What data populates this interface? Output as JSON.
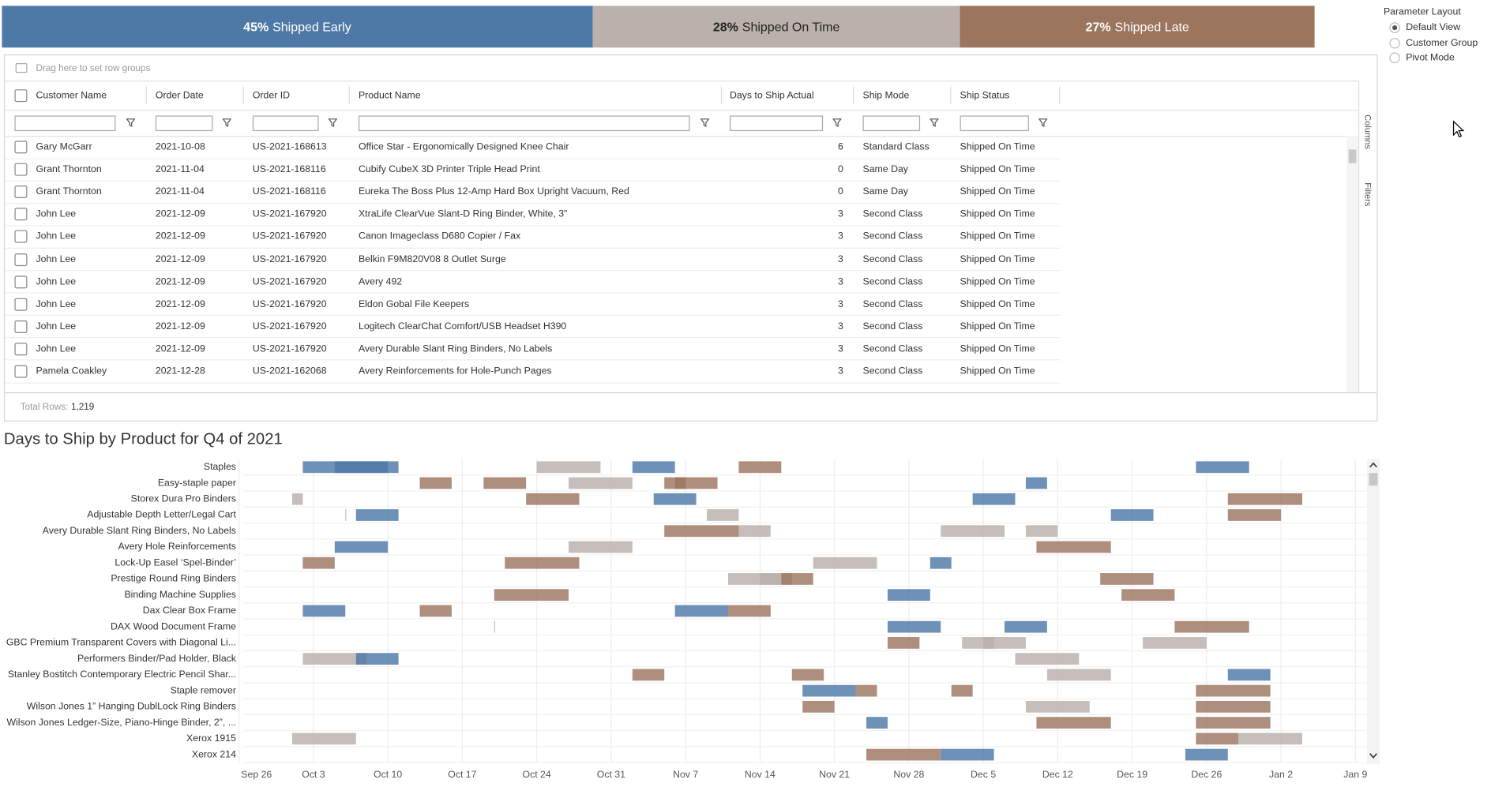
{
  "summary": {
    "segments": [
      {
        "value": 45,
        "label": "45%",
        "text": "Shipped Early",
        "color": "#4e79a7"
      },
      {
        "value": 28,
        "label": "28%",
        "text": "Shipped On Time",
        "color": "#bab0ac"
      },
      {
        "value": 27,
        "label": "27%",
        "text": "Shipped Late",
        "color": "#9c755f"
      }
    ]
  },
  "parameter": {
    "title": "Parameter Layout",
    "options": [
      "Default View",
      "Customer Group",
      "Pivot Mode"
    ],
    "selected": 0
  },
  "table": {
    "group_hint": "Drag here to set row groups",
    "columns": [
      "Customer Name",
      "Order Date",
      "Order ID",
      "Product Name",
      "Days to Ship Actual",
      "Ship Mode",
      "Ship Status"
    ],
    "rows": [
      [
        "Gary McGarr",
        "2021-10-08",
        "US-2021-168613",
        "Office Star - Ergonomically Designed Knee Chair",
        "6",
        "Standard Class",
        "Shipped On Time"
      ],
      [
        "Grant Thornton",
        "2021-11-04",
        "US-2021-168116",
        "Cubify CubeX 3D Printer Triple Head Print",
        "0",
        "Same Day",
        "Shipped On Time"
      ],
      [
        "Grant Thornton",
        "2021-11-04",
        "US-2021-168116",
        "Eureka The Boss Plus 12-Amp Hard Box Upright Vacuum, Red",
        "0",
        "Same Day",
        "Shipped On Time"
      ],
      [
        "John Lee",
        "2021-12-09",
        "US-2021-167920",
        "XtraLife ClearVue Slant-D Ring Binder, White, 3\"",
        "3",
        "Second Class",
        "Shipped On Time"
      ],
      [
        "John Lee",
        "2021-12-09",
        "US-2021-167920",
        "Canon Imageclass D680 Copier / Fax",
        "3",
        "Second Class",
        "Shipped On Time"
      ],
      [
        "John Lee",
        "2021-12-09",
        "US-2021-167920",
        "Belkin F9M820V08 8 Outlet Surge",
        "3",
        "Second Class",
        "Shipped On Time"
      ],
      [
        "John Lee",
        "2021-12-09",
        "US-2021-167920",
        "Avery 492",
        "3",
        "Second Class",
        "Shipped On Time"
      ],
      [
        "John Lee",
        "2021-12-09",
        "US-2021-167920",
        "Eldon Gobal File Keepers",
        "3",
        "Second Class",
        "Shipped On Time"
      ],
      [
        "John Lee",
        "2021-12-09",
        "US-2021-167920",
        "Logitech ClearChat Comfort/USB Headset H390",
        "3",
        "Second Class",
        "Shipped On Time"
      ],
      [
        "John Lee",
        "2021-12-09",
        "US-2021-167920",
        "Avery Durable Slant Ring Binders, No Labels",
        "3",
        "Second Class",
        "Shipped On Time"
      ],
      [
        "Pamela Coakley",
        "2021-12-28",
        "US-2021-162068",
        "Avery Reinforcements for Hole-Punch Pages",
        "3",
        "Second Class",
        "Shipped On Time"
      ]
    ],
    "total_label": "Total Rows:",
    "total": "1,219",
    "side_tabs": [
      "Columns",
      "Filters"
    ]
  },
  "chart_data": {
    "type": "gantt",
    "title": "Days to Ship by Product for Q4 of 2021",
    "xlim": [
      "2021-09-26",
      "2022-01-10"
    ],
    "xticks": [
      {
        "value": "2021-09-26",
        "label": "Sep 26"
      },
      {
        "value": "2021-10-03",
        "label": "Oct 3"
      },
      {
        "value": "2021-10-10",
        "label": "Oct 10"
      },
      {
        "value": "2021-10-17",
        "label": "Oct 17"
      },
      {
        "value": "2021-10-24",
        "label": "Oct 24"
      },
      {
        "value": "2021-10-31",
        "label": "Oct 31"
      },
      {
        "value": "2021-11-07",
        "label": "Nov 7"
      },
      {
        "value": "2021-11-14",
        "label": "Nov 14"
      },
      {
        "value": "2021-11-21",
        "label": "Nov 21"
      },
      {
        "value": "2021-11-28",
        "label": "Nov 28"
      },
      {
        "value": "2021-12-05",
        "label": "Dec 5"
      },
      {
        "value": "2021-12-12",
        "label": "Dec 12"
      },
      {
        "value": "2021-12-19",
        "label": "Dec 19"
      },
      {
        "value": "2021-12-26",
        "label": "Dec 26"
      },
      {
        "value": "2022-01-02",
        "label": "Jan 2"
      },
      {
        "value": "2022-01-09",
        "label": "Jan 9"
      }
    ],
    "grid": true,
    "rows": [
      {
        "product": "Staples",
        "tasks": [
          {
            "start": "2021-10-02",
            "end": "2021-10-10",
            "status": "Shipped Early"
          },
          {
            "start": "2021-10-05",
            "end": "2021-10-11",
            "status": "Shipped Early"
          },
          {
            "start": "2021-10-24",
            "end": "2021-10-30",
            "status": "Shipped On Time"
          },
          {
            "start": "2021-11-02",
            "end": "2021-11-06",
            "status": "Shipped Early"
          },
          {
            "start": "2021-11-12",
            "end": "2021-11-16",
            "status": "Shipped Late"
          },
          {
            "start": "2021-12-25",
            "end": "2021-12-30",
            "status": "Shipped Early"
          }
        ]
      },
      {
        "product": "Easy-staple paper",
        "tasks": [
          {
            "start": "2021-10-13",
            "end": "2021-10-16",
            "status": "Shipped Late"
          },
          {
            "start": "2021-10-19",
            "end": "2021-10-23",
            "status": "Shipped Late"
          },
          {
            "start": "2021-10-27",
            "end": "2021-11-02",
            "status": "Shipped On Time"
          },
          {
            "start": "2021-11-05",
            "end": "2021-11-10",
            "status": "Shipped Late"
          },
          {
            "start": "2021-11-06",
            "end": "2021-11-07",
            "status": "Shipped Late"
          },
          {
            "start": "2021-12-09",
            "end": "2021-12-11",
            "status": "Shipped Early"
          }
        ]
      },
      {
        "product": "Storex Dura Pro Binders",
        "tasks": [
          {
            "start": "2021-10-01",
            "end": "2021-10-02",
            "status": "Shipped On Time"
          },
          {
            "start": "2021-10-23",
            "end": "2021-10-28",
            "status": "Shipped Late"
          },
          {
            "start": "2021-11-04",
            "end": "2021-11-08",
            "status": "Shipped Early"
          },
          {
            "start": "2021-12-04",
            "end": "2021-12-08",
            "status": "Shipped Early"
          },
          {
            "start": "2021-12-28",
            "end": "2022-01-04",
            "status": "Shipped Late"
          }
        ]
      },
      {
        "product": "Adjustable Depth Letter/Legal Cart",
        "tasks": [
          {
            "start": "2021-10-06",
            "end": "2021-10-06",
            "status": "Shipped On Time"
          },
          {
            "start": "2021-10-07",
            "end": "2021-10-11",
            "status": "Shipped Early"
          },
          {
            "start": "2021-11-09",
            "end": "2021-11-12",
            "status": "Shipped On Time"
          },
          {
            "start": "2021-12-17",
            "end": "2021-12-21",
            "status": "Shipped Early"
          },
          {
            "start": "2021-12-28",
            "end": "2022-01-02",
            "status": "Shipped Late"
          }
        ]
      },
      {
        "product": "Avery Durable Slant Ring Binders, No Labels",
        "tasks": [
          {
            "start": "2021-11-05",
            "end": "2021-11-12",
            "status": "Shipped Late"
          },
          {
            "start": "2021-11-12",
            "end": "2021-11-15",
            "status": "Shipped On Time"
          },
          {
            "start": "2021-12-01",
            "end": "2021-12-07",
            "status": "Shipped On Time"
          },
          {
            "start": "2021-12-09",
            "end": "2021-12-12",
            "status": "Shipped On Time"
          }
        ]
      },
      {
        "product": "Avery Hole Reinforcements",
        "tasks": [
          {
            "start": "2021-10-05",
            "end": "2021-10-10",
            "status": "Shipped Early"
          },
          {
            "start": "2021-10-27",
            "end": "2021-11-02",
            "status": "Shipped On Time"
          },
          {
            "start": "2021-12-10",
            "end": "2021-12-17",
            "status": "Shipped Late"
          }
        ]
      },
      {
        "product": "Lock-Up Easel ‘Spel-Binder’",
        "tasks": [
          {
            "start": "2021-10-02",
            "end": "2021-10-05",
            "status": "Shipped Late"
          },
          {
            "start": "2021-10-21",
            "end": "2021-10-28",
            "status": "Shipped Late"
          },
          {
            "start": "2021-11-19",
            "end": "2021-11-25",
            "status": "Shipped On Time"
          },
          {
            "start": "2021-11-30",
            "end": "2021-12-02",
            "status": "Shipped Early"
          }
        ]
      },
      {
        "product": "Prestige Round Ring Binders",
        "tasks": [
          {
            "start": "2021-11-11",
            "end": "2021-11-16",
            "status": "Shipped On Time"
          },
          {
            "start": "2021-11-14",
            "end": "2021-11-17",
            "status": "Shipped On Time"
          },
          {
            "start": "2021-11-16",
            "end": "2021-11-19",
            "status": "Shipped Late"
          },
          {
            "start": "2021-12-16",
            "end": "2021-12-21",
            "status": "Shipped Late"
          }
        ]
      },
      {
        "product": "Binding Machine Supplies",
        "tasks": [
          {
            "start": "2021-10-20",
            "end": "2021-10-27",
            "status": "Shipped Late"
          },
          {
            "start": "2021-11-26",
            "end": "2021-11-30",
            "status": "Shipped Early"
          },
          {
            "start": "2021-12-18",
            "end": "2021-12-23",
            "status": "Shipped Late"
          }
        ]
      },
      {
        "product": "Dax Clear Box Frame",
        "tasks": [
          {
            "start": "2021-10-02",
            "end": "2021-10-06",
            "status": "Shipped Early"
          },
          {
            "start": "2021-10-13",
            "end": "2021-10-16",
            "status": "Shipped Late"
          },
          {
            "start": "2021-11-06",
            "end": "2021-11-11",
            "status": "Shipped Early"
          },
          {
            "start": "2021-11-11",
            "end": "2021-11-15",
            "status": "Shipped Late"
          }
        ]
      },
      {
        "product": "DAX Wood Document Frame",
        "tasks": [
          {
            "start": "2021-10-20",
            "end": "2021-10-20",
            "status": "Shipped On Time"
          },
          {
            "start": "2021-11-26",
            "end": "2021-12-01",
            "status": "Shipped Early"
          },
          {
            "start": "2021-12-07",
            "end": "2021-12-11",
            "status": "Shipped Early"
          },
          {
            "start": "2021-12-23",
            "end": "2021-12-30",
            "status": "Shipped Late"
          }
        ]
      },
      {
        "product": "GBC Premium Transparent Covers with Diagonal Li...",
        "tasks": [
          {
            "start": "2021-11-26",
            "end": "2021-11-29",
            "status": "Shipped Late"
          },
          {
            "start": "2021-12-03",
            "end": "2021-12-06",
            "status": "Shipped On Time"
          },
          {
            "start": "2021-12-05",
            "end": "2021-12-09",
            "status": "Shipped On Time"
          },
          {
            "start": "2021-12-20",
            "end": "2021-12-26",
            "status": "Shipped On Time"
          }
        ]
      },
      {
        "product": "Performers Binder/Pad Holder, Black",
        "tasks": [
          {
            "start": "2021-10-02",
            "end": "2021-10-08",
            "status": "Shipped On Time"
          },
          {
            "start": "2021-10-07",
            "end": "2021-10-11",
            "status": "Shipped Early"
          },
          {
            "start": "2021-12-08",
            "end": "2021-12-14",
            "status": "Shipped On Time"
          }
        ]
      },
      {
        "product": "Stanley Bostitch Contemporary Electric Pencil Shar...",
        "tasks": [
          {
            "start": "2021-11-02",
            "end": "2021-11-05",
            "status": "Shipped Late"
          },
          {
            "start": "2021-11-17",
            "end": "2021-11-20",
            "status": "Shipped Late"
          },
          {
            "start": "2021-12-11",
            "end": "2021-12-17",
            "status": "Shipped On Time"
          },
          {
            "start": "2021-12-28",
            "end": "2022-01-01",
            "status": "Shipped Early"
          }
        ]
      },
      {
        "product": "Staple remover",
        "tasks": [
          {
            "start": "2021-11-18",
            "end": "2021-11-23",
            "status": "Shipped Early"
          },
          {
            "start": "2021-11-23",
            "end": "2021-11-25",
            "status": "Shipped Late"
          },
          {
            "start": "2021-12-02",
            "end": "2021-12-04",
            "status": "Shipped Late"
          },
          {
            "start": "2021-12-25",
            "end": "2022-01-01",
            "status": "Shipped Late"
          }
        ]
      },
      {
        "product": "Wilson Jones 1” Hanging DublLock Ring Binders",
        "tasks": [
          {
            "start": "2021-11-18",
            "end": "2021-11-21",
            "status": "Shipped Late"
          },
          {
            "start": "2021-12-09",
            "end": "2021-12-15",
            "status": "Shipped On Time"
          },
          {
            "start": "2021-12-25",
            "end": "2022-01-01",
            "status": "Shipped Late"
          }
        ]
      },
      {
        "product": "Wilson Jones Ledger-Size, Piano-Hinge Binder, 2”, ...",
        "tasks": [
          {
            "start": "2021-11-24",
            "end": "2021-11-26",
            "status": "Shipped Early"
          },
          {
            "start": "2021-12-10",
            "end": "2021-12-17",
            "status": "Shipped Late"
          },
          {
            "start": "2021-12-25",
            "end": "2022-01-01",
            "status": "Shipped Late"
          }
        ]
      },
      {
        "product": "Xerox 1915",
        "tasks": [
          {
            "start": "2021-10-01",
            "end": "2021-10-07",
            "status": "Shipped On Time"
          },
          {
            "start": "2021-12-25",
            "end": "2021-12-29",
            "status": "Shipped Late"
          },
          {
            "start": "2021-12-29",
            "end": "2022-01-04",
            "status": "Shipped On Time"
          }
        ]
      },
      {
        "product": "Xerox 214",
        "tasks": [
          {
            "start": "2021-11-24",
            "end": "2021-12-01",
            "status": "Shipped Late"
          },
          {
            "start": "2021-12-01",
            "end": "2021-12-06",
            "status": "Shipped Early"
          },
          {
            "start": "2021-12-24",
            "end": "2021-12-28",
            "status": "Shipped Early"
          }
        ]
      }
    ]
  }
}
